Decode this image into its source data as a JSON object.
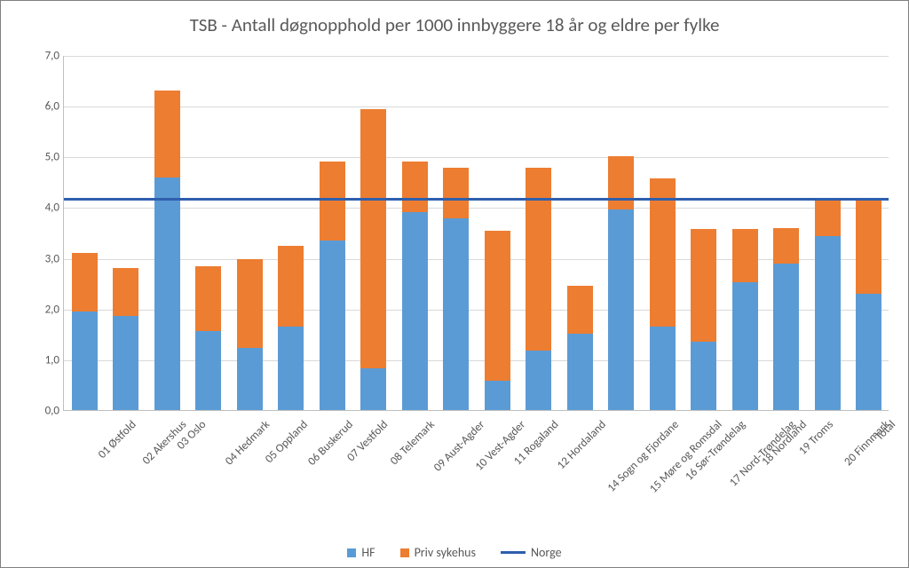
{
  "chart": {
    "type": "stacked-bar-with-line",
    "title": "TSB - Antall døgnopphold per 1000 innbyggere 18 år og eldre per fylke",
    "title_fontsize": 21,
    "title_color": "#595959",
    "background_color": "#ffffff",
    "border_color": "#808080",
    "grid_color": "#d9d9d9",
    "axis_color": "#bfbfbf",
    "tick_font_color": "#595959",
    "tick_fontsize": 13,
    "y": {
      "min": 0.0,
      "max": 7.0,
      "step": 1.0,
      "labels": [
        "0,0",
        "1,0",
        "2,0",
        "3,0",
        "4,0",
        "5,0",
        "6,0",
        "7,0"
      ]
    },
    "categories": [
      "01 Østfold",
      "02 Akershus",
      "03 Oslo",
      "04 Hedmark",
      "05 Oppland",
      "06 Buskerud",
      "07 Vestfold",
      "08 Telemark",
      "09 Aust-Agder",
      "10 Vest-Agder",
      "11 Rogaland",
      "12 Hordaland",
      "14 Sogn og Fjordane",
      "15 Møre og Romsdal",
      "16 Sør-Trøndelag",
      "17 Nord-Trøndelag",
      "18 Nordland",
      "19 Troms",
      "20 Finnmark",
      "Total"
    ],
    "series": [
      {
        "name": "HF",
        "color": "#5b9bd5",
        "values": [
          1.95,
          1.85,
          4.58,
          1.55,
          1.22,
          1.65,
          3.35,
          0.82,
          3.9,
          3.78,
          0.58,
          1.18,
          1.5,
          3.95,
          1.65,
          1.35,
          2.52,
          2.88,
          3.43,
          2.3
        ]
      },
      {
        "name": "Priv sykehus",
        "color": "#ed7d31",
        "values": [
          1.15,
          0.95,
          1.72,
          1.28,
          1.75,
          1.58,
          1.55,
          5.12,
          1.0,
          1.0,
          2.95,
          3.6,
          0.95,
          1.05,
          2.92,
          2.22,
          1.05,
          0.7,
          0.72,
          1.88
        ]
      }
    ],
    "line": {
      "name": "Norge",
      "color": "#2e5fad",
      "value": 4.2,
      "width": 3
    },
    "bar_width_ratio": 0.62,
    "legend_fontsize": 14
  }
}
